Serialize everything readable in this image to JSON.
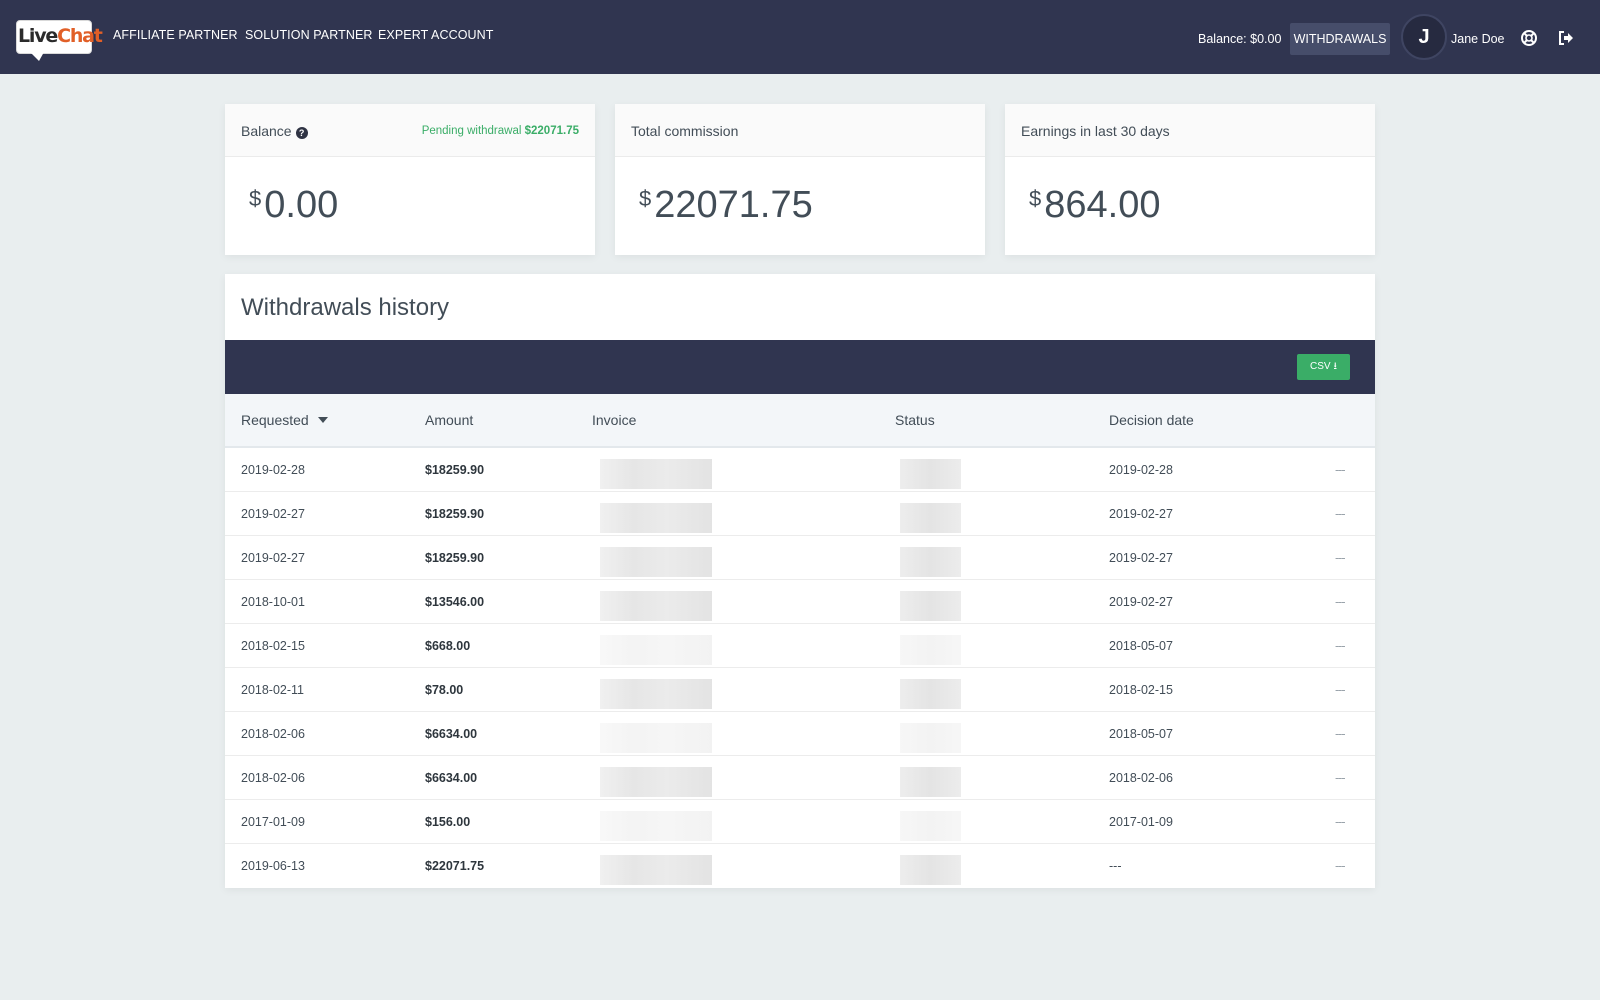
{
  "brand": {
    "logo_live": "Live",
    "logo_chat": "Chat"
  },
  "nav": [
    {
      "label": "AFFILIATE PARTNER"
    },
    {
      "label": "SOLUTION PARTNER"
    },
    {
      "label": "EXPERT ACCOUNT"
    }
  ],
  "header": {
    "balance_label": "Balance: $0.00",
    "withdrawals_label": "WITHDRAWALS",
    "avatar_initial": "J",
    "username": "Jane Doe"
  },
  "cards": {
    "balance": {
      "title": "Balance",
      "pending_label": "Pending withdrawal",
      "pending_amount": "$22071.75",
      "currency": "$",
      "value": "0.00"
    },
    "commission": {
      "title": "Total commission",
      "currency": "$",
      "value": "22071.75"
    },
    "earnings": {
      "title": "Earnings in last 30 days",
      "currency": "$",
      "value": "864.00"
    }
  },
  "history": {
    "title": "Withdrawals history",
    "csv_label": "CSV",
    "columns": {
      "requested": "Requested",
      "amount": "Amount",
      "invoice": "Invoice",
      "status": "Status",
      "decision": "Decision date"
    },
    "rows": [
      {
        "requested": "2019-02-28",
        "amount": "$18259.90",
        "decision": "2019-02-28",
        "action": "---"
      },
      {
        "requested": "2019-02-27",
        "amount": "$18259.90",
        "decision": "2019-02-27",
        "action": "---"
      },
      {
        "requested": "2019-02-27",
        "amount": "$18259.90",
        "decision": "2019-02-27",
        "action": "---"
      },
      {
        "requested": "2018-10-01",
        "amount": "$13546.00",
        "decision": "2019-02-27",
        "action": "---"
      },
      {
        "requested": "2018-02-15",
        "amount": "$668.00",
        "decision": "2018-05-07",
        "action": "---"
      },
      {
        "requested": "2018-02-11",
        "amount": "$78.00",
        "decision": "2018-02-15",
        "action": "---"
      },
      {
        "requested": "2018-02-06",
        "amount": "$6634.00",
        "decision": "2018-05-07",
        "action": "---"
      },
      {
        "requested": "2018-02-06",
        "amount": "$6634.00",
        "decision": "2018-02-06",
        "action": "---"
      },
      {
        "requested": "2017-01-09",
        "amount": "$156.00",
        "decision": "2017-01-09",
        "action": "---"
      },
      {
        "requested": "2019-06-13",
        "amount": "$22071.75",
        "decision": "---",
        "action": "---"
      }
    ]
  },
  "colors": {
    "topbar": "#303550",
    "accent_green": "#3aad67",
    "logo_orange": "#e15f27",
    "background": "#e9eeef"
  },
  "icons": {
    "help": "lifebuoy-icon",
    "logout": "sign-out-icon",
    "info": "question-circle-icon",
    "sort": "caret-down-icon",
    "download": "download-icon"
  }
}
